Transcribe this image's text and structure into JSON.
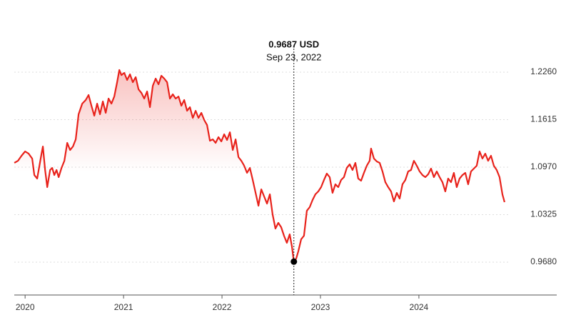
{
  "chart_data": {
    "type": "line",
    "x": [
      2019.891,
      2019.928,
      2019.964,
      2020.0,
      2020.036,
      2020.072,
      2020.094,
      2020.123,
      2020.167,
      2020.181,
      2020.203,
      2020.225,
      2020.254,
      2020.275,
      2020.297,
      2020.319,
      2020.341,
      2020.37,
      2020.399,
      2020.428,
      2020.457,
      2020.486,
      2020.514,
      2020.543,
      2020.58,
      2020.616,
      2020.645,
      2020.674,
      2020.703,
      2020.732,
      2020.761,
      2020.79,
      2020.819,
      2020.848,
      2020.877,
      2020.906,
      2020.935,
      2020.957,
      2020.978,
      2021.007,
      2021.036,
      2021.065,
      2021.094,
      2021.123,
      2021.152,
      2021.181,
      2021.21,
      2021.239,
      2021.268,
      2021.297,
      2021.326,
      2021.355,
      2021.384,
      2021.413,
      2021.442,
      2021.471,
      2021.5,
      2021.529,
      2021.558,
      2021.587,
      2021.616,
      2021.645,
      2021.674,
      2021.703,
      2021.732,
      2021.761,
      2021.79,
      2021.819,
      2021.848,
      2021.877,
      2021.906,
      2021.935,
      2021.964,
      2021.993,
      2022.022,
      2022.051,
      2022.08,
      2022.109,
      2022.138,
      2022.167,
      2022.196,
      2022.225,
      2022.254,
      2022.283,
      2022.312,
      2022.341,
      2022.37,
      2022.399,
      2022.428,
      2022.457,
      2022.486,
      2022.514,
      2022.543,
      2022.572,
      2022.601,
      2022.63,
      2022.659,
      2022.688,
      2022.71,
      2022.73,
      2022.754,
      2022.775,
      2022.804,
      2022.833,
      2022.862,
      2022.891,
      2022.92,
      2022.949,
      2022.978,
      2023.007,
      2023.036,
      2023.065,
      2023.094,
      2023.123,
      2023.152,
      2023.181,
      2023.21,
      2023.239,
      2023.268,
      2023.297,
      2023.326,
      2023.355,
      2023.384,
      2023.413,
      2023.442,
      2023.471,
      2023.5,
      2023.514,
      2023.543,
      2023.572,
      2023.601,
      2023.63,
      2023.659,
      2023.688,
      2023.717,
      2023.746,
      2023.775,
      2023.804,
      2023.833,
      2023.862,
      2023.891,
      2023.92,
      2023.949,
      2023.978,
      2024.007,
      2024.036,
      2024.065,
      2024.094,
      2024.123,
      2024.152,
      2024.181,
      2024.21,
      2024.239,
      2024.268,
      2024.297,
      2024.326,
      2024.355,
      2024.384,
      2024.413,
      2024.442,
      2024.471,
      2024.5,
      2024.529,
      2024.558,
      2024.587,
      2024.616,
      2024.645,
      2024.674,
      2024.703,
      2024.732,
      2024.761,
      2024.79,
      2024.819,
      2024.848,
      2024.87
    ],
    "values": [
      1.1028,
      1.1057,
      1.1125,
      1.1184,
      1.1154,
      1.1087,
      1.0863,
      1.0815,
      1.1154,
      1.1251,
      1.0931,
      1.0699,
      1.0931,
      1.096,
      1.0863,
      1.0931,
      1.0834,
      1.096,
      1.1057,
      1.13,
      1.1203,
      1.1251,
      1.1348,
      1.1688,
      1.1833,
      1.1882,
      1.195,
      1.1804,
      1.1669,
      1.1833,
      1.1688,
      1.1863,
      1.1707,
      1.1901,
      1.1833,
      1.193,
      1.2124,
      1.2289,
      1.2221,
      1.2251,
      1.2154,
      1.2231,
      1.2124,
      1.2192,
      1.2027,
      1.1979,
      1.1901,
      1.1998,
      1.1785,
      1.2076,
      1.2173,
      1.2095,
      1.2212,
      1.2173,
      1.2124,
      1.1901,
      1.196,
      1.1901,
      1.193,
      1.1804,
      1.1882,
      1.1736,
      1.1785,
      1.1639,
      1.1736,
      1.1639,
      1.1707,
      1.161,
      1.1542,
      1.1329,
      1.1348,
      1.13,
      1.1378,
      1.1319,
      1.1416,
      1.1339,
      1.1445,
      1.1203,
      1.1348,
      1.1106,
      1.1057,
      1.099,
      1.0893,
      1.096,
      1.0796,
      1.0621,
      1.0446,
      1.0669,
      1.0572,
      1.0475,
      1.0602,
      1.033,
      1.0136,
      1.0214,
      1.0155,
      1.0039,
      0.9942,
      1.0058,
      0.9893,
      0.9687,
      0.9729,
      0.9826,
      0.999,
      1.0039,
      1.0378,
      1.0427,
      1.0524,
      1.0602,
      1.064,
      1.0699,
      1.0796,
      1.0883,
      1.0834,
      1.0621,
      1.0737,
      1.0699,
      1.0796,
      1.0834,
      1.096,
      1.1009,
      1.0931,
      1.1028,
      1.0815,
      1.0786,
      1.0893,
      1.099,
      1.1057,
      1.1222,
      1.1087,
      1.1048,
      1.1028,
      1.0912,
      1.0766,
      1.0699,
      1.064,
      1.0505,
      1.0621,
      1.0543,
      1.0737,
      1.0796,
      1.0912,
      1.0931,
      1.1057,
      1.099,
      1.0912,
      1.0863,
      1.0834,
      1.0873,
      1.0951,
      1.0834,
      1.0912,
      1.0834,
      1.0766,
      1.064,
      1.0815,
      1.0766,
      1.0893,
      1.0699,
      1.0815,
      1.0863,
      1.0893,
      1.0737,
      1.0912,
      1.0951,
      1.099,
      1.1184,
      1.1087,
      1.1154,
      1.1057,
      1.1125,
      1.099,
      1.0931,
      1.0834,
      1.0602,
      1.0495
    ],
    "color": "#e8221b",
    "xlim": [
      2019.89,
      2025.4
    ],
    "xticks": [
      2020,
      2021,
      2022,
      2023,
      2024
    ],
    "ylim": [
      0.9234,
      1.2852
    ],
    "yticks": [
      {
        "value": 0.968,
        "label": "0.9680"
      },
      {
        "value": 1.0325,
        "label": "1.0325"
      },
      {
        "value": 1.097,
        "label": "1.0970"
      },
      {
        "value": 1.1615,
        "label": "1.1615"
      },
      {
        "value": 1.226,
        "label": "1.2260"
      }
    ],
    "grid": true,
    "annotation": {
      "x": 2022.73,
      "value": 0.9687,
      "value_label": "0.9687 USD",
      "date_label": "Sep 23, 2022"
    }
  }
}
